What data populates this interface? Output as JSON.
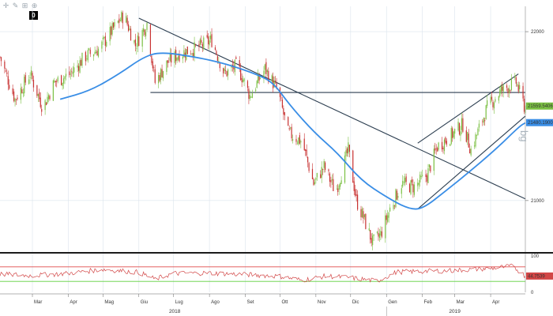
{
  "toolbar": {
    "icons": [
      "crosshair-icon",
      "pencil-icon",
      "ruler-icon",
      "zoom-in-icon"
    ],
    "counter": "0"
  },
  "colors": {
    "bullish": "#7bc043",
    "bearish": "#c83232",
    "moving_average": "#3a8ee6",
    "trendline": "#2c3e50",
    "rsi_line": "#d24646",
    "rsi_upper_band": "#e04a4a",
    "rsi_lower_band": "#5fcf3a",
    "price_label_bg": "#7bc043",
    "ma_label_bg": "#3a8ee6",
    "rsi_label_bg": "#d24646",
    "grid": "#dbe4ec"
  },
  "chart_data": [
    {
      "type": "candlestick",
      "title": "",
      "ylim": [
        20700,
        22150
      ],
      "y_ticks": [
        {
          "value": 22000,
          "label": "22000"
        },
        {
          "value": 21000,
          "label": "21000"
        }
      ],
      "x_month_labels": [
        "Mar",
        "Apr",
        "Mag",
        "Giu",
        "Lug",
        "Ago",
        "Set",
        "Ott",
        "Nov",
        "Dic",
        "Gen",
        "Feb",
        "Mar",
        "Apr"
      ],
      "x_month_dates": [
        "2018-03-01",
        "2018-04-01",
        "2018-05-01",
        "2018-06-01",
        "2018-07-01",
        "2018-08-01",
        "2018-09-01",
        "2018-10-01",
        "2018-11-01",
        "2018-12-01",
        "2019-01-01",
        "2019-02-01",
        "2019-03-01",
        "2019-04-01"
      ],
      "x_range": [
        "2018-02-01",
        "2019-05-01"
      ],
      "year_labels": [
        {
          "label": "2018",
          "date": "2018-07-02"
        },
        {
          "label": "2019",
          "date": "2019-03-01"
        }
      ],
      "close_path": [
        [
          "2018-02-01",
          21850
        ],
        [
          "2018-02-14",
          21600
        ],
        [
          "2018-02-27",
          21750
        ],
        [
          "2018-03-10",
          21550
        ],
        [
          "2018-03-20",
          21700
        ],
        [
          "2018-04-03",
          21750
        ],
        [
          "2018-04-15",
          21850
        ],
        [
          "2018-04-28",
          21900
        ],
        [
          "2018-05-08",
          22000
        ],
        [
          "2018-05-19",
          22100
        ],
        [
          "2018-05-29",
          21920
        ],
        [
          "2018-06-08",
          22050
        ],
        [
          "2018-06-15",
          21700
        ],
        [
          "2018-06-26",
          21820
        ],
        [
          "2018-07-06",
          21870
        ],
        [
          "2018-07-20",
          21900
        ],
        [
          "2018-08-03",
          21950
        ],
        [
          "2018-08-14",
          21750
        ],
        [
          "2018-08-25",
          21800
        ],
        [
          "2018-09-05",
          21620
        ],
        [
          "2018-09-18",
          21780
        ],
        [
          "2018-09-29",
          21650
        ],
        [
          "2018-10-08",
          21400
        ],
        [
          "2018-10-20",
          21350
        ],
        [
          "2018-10-30",
          21100
        ],
        [
          "2018-11-08",
          21200
        ],
        [
          "2018-11-18",
          21050
        ],
        [
          "2018-11-29",
          21300
        ],
        [
          "2018-12-06",
          21000
        ],
        [
          "2018-12-12",
          20900
        ],
        [
          "2018-12-20",
          20750
        ],
        [
          "2018-12-27",
          20800
        ],
        [
          "2019-01-04",
          20950
        ],
        [
          "2019-01-14",
          21100
        ],
        [
          "2019-01-25",
          21080
        ],
        [
          "2019-02-05",
          21150
        ],
        [
          "2019-02-14",
          21320
        ],
        [
          "2019-02-25",
          21380
        ],
        [
          "2019-03-08",
          21450
        ],
        [
          "2019-03-15",
          21300
        ],
        [
          "2019-03-29",
          21550
        ],
        [
          "2019-04-10",
          21650
        ],
        [
          "2019-04-23",
          21700
        ],
        [
          "2019-04-30",
          21560
        ]
      ],
      "moving_average": [
        [
          "2018-03-25",
          21600
        ],
        [
          "2018-04-20",
          21650
        ],
        [
          "2018-05-15",
          21750
        ],
        [
          "2018-06-05",
          21850
        ],
        [
          "2018-06-20",
          21880
        ],
        [
          "2018-07-20",
          21850
        ],
        [
          "2018-08-15",
          21810
        ],
        [
          "2018-09-10",
          21750
        ],
        [
          "2018-09-25",
          21700
        ],
        [
          "2018-10-10",
          21560
        ],
        [
          "2018-10-31",
          21400
        ],
        [
          "2018-11-20",
          21280
        ],
        [
          "2018-12-10",
          21120
        ],
        [
          "2019-01-01",
          21020
        ],
        [
          "2019-01-20",
          20950
        ],
        [
          "2019-02-01",
          20950
        ],
        [
          "2019-02-20",
          21050
        ],
        [
          "2019-03-10",
          21150
        ],
        [
          "2019-04-05",
          21300
        ],
        [
          "2019-04-26",
          21440
        ],
        [
          "2019-05-01",
          21460
        ]
      ],
      "trendlines": [
        {
          "from": [
            "2018-06-01",
            22080
          ],
          "to": [
            "2019-05-01",
            21010
          ]
        },
        {
          "from": [
            "2018-06-11",
            21640
          ],
          "to": [
            "2019-05-01",
            21640
          ]
        },
        {
          "from": [
            "2019-01-28",
            21340
          ],
          "to": [
            "2019-04-25",
            21750
          ]
        },
        {
          "from": [
            "2019-01-28",
            20950
          ],
          "to": [
            "2019-05-01",
            21500
          ]
        }
      ],
      "last_price_label": "21559.5406",
      "ma_label": "21480.1900",
      "last_price": 21559.5406,
      "ma_last": 21480.19
    },
    {
      "type": "line",
      "title": "",
      "ylim": [
        0,
        100
      ],
      "y_ticks": [
        {
          "value": 100,
          "label": "100"
        },
        {
          "value": 0,
          "label": "0"
        }
      ],
      "bands": [
        70,
        30
      ],
      "series": [
        {
          "values": [
            [
              "2018-02-01",
              50
            ],
            [
              "2018-03-01",
              46
            ],
            [
              "2018-04-01",
              52
            ],
            [
              "2018-05-01",
              63
            ],
            [
              "2018-06-01",
              55
            ],
            [
              "2018-06-15",
              36
            ],
            [
              "2018-07-01",
              52
            ],
            [
              "2018-08-01",
              53
            ],
            [
              "2018-09-01",
              49
            ],
            [
              "2018-10-01",
              44
            ],
            [
              "2018-10-20",
              33
            ],
            [
              "2018-11-10",
              45
            ],
            [
              "2018-12-01",
              40
            ],
            [
              "2018-12-24",
              31
            ],
            [
              "2019-01-10",
              56
            ],
            [
              "2019-02-01",
              58
            ],
            [
              "2019-03-01",
              60
            ],
            [
              "2019-04-01",
              66
            ],
            [
              "2019-04-20",
              72
            ],
            [
              "2019-05-01",
              44.7539
            ]
          ]
        }
      ],
      "last_label": "44.7539"
    }
  ]
}
